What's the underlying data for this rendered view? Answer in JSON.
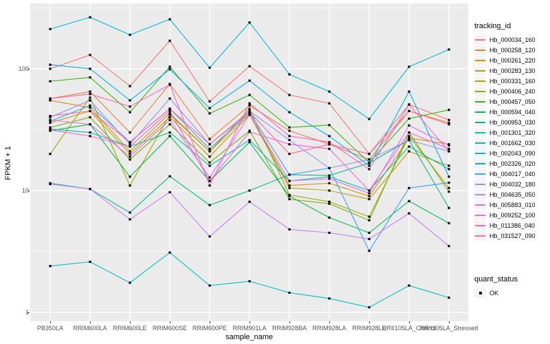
{
  "colors": {
    "panel_bg": "#EBEBEB",
    "grid_major": "#FFFFFF",
    "grid_minor": "#FFFFFF",
    "tick_text": "#4D4D4D",
    "axis_title_text": "#000000",
    "point_color": "#000000",
    "legend_key_bg": "#F4F4F4"
  },
  "axes": {
    "y_title": "FPKM + 1",
    "x_title": "sample_name",
    "y_tick_labels": [
      "100",
      "10",
      "1"
    ],
    "y_tick_values": [
      100,
      10,
      1
    ]
  },
  "legend": {
    "tracking_title": "tracking_id",
    "quant_title": "quant_status",
    "quant_entry": "OK"
  },
  "chart_data": {
    "type": "line",
    "title": "",
    "xlabel": "sample_name",
    "ylabel": "FPKM + 1",
    "y_scale": "log10",
    "ylim": [
      0.84,
      345
    ],
    "grid": true,
    "legend_position": "right",
    "point_shape": "black-square",
    "categories": [
      "PB350LA",
      "RRIM600LA",
      "RRIM600LE",
      "RRIM600SE",
      "RRIM600PE",
      "RRIM901LA",
      "RRIM928BA",
      "RRIM928LA",
      "RRIM928LE",
      "RRII105LA_Control",
      "RRII105LA_Stressed"
    ],
    "series": [
      {
        "name": "Hb_000034_160",
        "color": "#F8766D",
        "values": [
          100,
          130,
          72,
          170,
          54,
          105,
          61,
          52,
          20,
          51,
          38
        ]
      },
      {
        "name": "Hb_000258_120",
        "color": "#EA8331",
        "values": [
          57,
          65,
          30,
          75,
          26.5,
          50,
          31,
          24,
          18,
          45,
          36
        ]
      },
      {
        "name": "Hb_000261_220",
        "color": "#D89000",
        "values": [
          55,
          48,
          21,
          43,
          21,
          43,
          11,
          11.5,
          9,
          27,
          24
        ]
      },
      {
        "name": "Hb_000283_130",
        "color": "#C09B00",
        "values": [
          36,
          45,
          20,
          40,
          19,
          42,
          10.5,
          10,
          8.5,
          21,
          16
        ]
      },
      {
        "name": "Hb_000331_160",
        "color": "#A3A500",
        "values": [
          20,
          58,
          11,
          42,
          21,
          47,
          9.2,
          8.1,
          6.1,
          28,
          10.5
        ]
      },
      {
        "name": "Hb_000406_240",
        "color": "#7CAE00",
        "values": [
          33,
          40,
          18,
          35,
          17,
          31,
          8.5,
          7.8,
          5.7,
          30,
          9.8
        ]
      },
      {
        "name": "Hb_000457_050",
        "color": "#39B600",
        "values": [
          79,
          85,
          44,
          104,
          43,
          61,
          33,
          34.5,
          17,
          39,
          46
        ]
      },
      {
        "name": "Hb_000594_040",
        "color": "#00BB4E",
        "values": [
          31,
          35,
          13,
          28,
          12,
          25,
          9,
          6,
          4.5,
          8.2,
          5.4
        ]
      },
      {
        "name": "Hb_000953_030",
        "color": "#00BF7D",
        "values": [
          11.5,
          10.3,
          6.6,
          13.1,
          7.6,
          10,
          13.5,
          13.3,
          16.8,
          26,
          7.2
        ]
      },
      {
        "name": "Hb_001301_320",
        "color": "#00C1A3",
        "values": [
          32,
          30,
          23,
          30,
          16,
          26,
          12,
          13,
          10,
          23,
          15
        ]
      },
      {
        "name": "Hb_001662_030",
        "color": "#00BFC4",
        "values": [
          2.4,
          2.6,
          1.75,
          3.1,
          1.66,
          1.8,
          1.45,
          1.3,
          1.1,
          1.66,
          1.32
        ]
      },
      {
        "name": "Hb_002043_090",
        "color": "#00BADE",
        "values": [
          212,
          265,
          190,
          255,
          102,
          240,
          90,
          65,
          38.7,
          104,
          144
        ]
      },
      {
        "name": "Hb_002326_020",
        "color": "#00B0F6",
        "values": [
          108,
          100,
          55,
          99,
          47.5,
          80,
          44,
          28,
          16,
          65,
          13
        ]
      },
      {
        "name": "Hb_004017_040",
        "color": "#35A2FF",
        "values": [
          37,
          50,
          25,
          47,
          22,
          44,
          13.5,
          15.3,
          3.2,
          10.5,
          11.6
        ]
      },
      {
        "name": "Hb_004032_180",
        "color": "#9590FF",
        "values": [
          40,
          55,
          24,
          57,
          24,
          45,
          26,
          15.3,
          18,
          26,
          21
        ]
      },
      {
        "name": "Hb_004635_050",
        "color": "#C77CFF",
        "values": [
          11.3,
          10.3,
          5.8,
          9.7,
          4.2,
          8.1,
          4.8,
          4.5,
          4.0,
          6.5,
          3.5
        ]
      },
      {
        "name": "Hb_005883_010",
        "color": "#E76BF3",
        "values": [
          38,
          35,
          19,
          38,
          12.8,
          42,
          12,
          12.5,
          9.5,
          34.3,
          23.5
        ]
      },
      {
        "name": "Hb_009252_100",
        "color": "#FA62DB",
        "values": [
          31.5,
          28,
          23,
          45,
          12,
          30.3,
          24,
          22,
          10,
          30,
          22
        ]
      },
      {
        "name": "Hb_011386_040",
        "color": "#FF62BC",
        "values": [
          57,
          62,
          49,
          74,
          11,
          52,
          28,
          25,
          15,
          50.8,
          21
        ]
      },
      {
        "name": "Hb_031527_090",
        "color": "#FF6A98",
        "values": [
          41,
          45,
          25,
          47,
          24,
          44,
          20,
          24,
          20,
          45,
          35
        ]
      }
    ]
  }
}
